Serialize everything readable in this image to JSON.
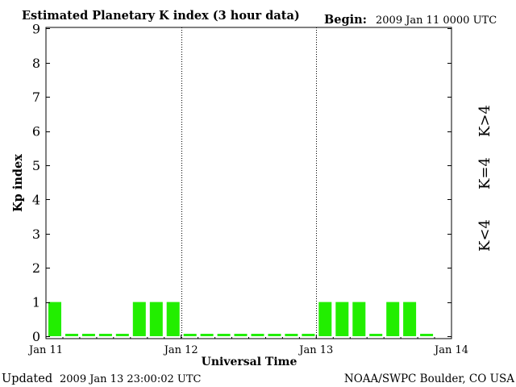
{
  "header": {
    "title": "Estimated Planetary K index (3 hour data)",
    "begin_label": "Begin:",
    "begin_value": "2009 Jan 11 0000 UTC"
  },
  "footer": {
    "updated_label": "Updated",
    "updated_value": "2009 Jan 13 23:00:02 UTC",
    "source": "NOAA/SWPC Boulder, CO USA"
  },
  "legend": {
    "above": {
      "label": "K>4",
      "color": "#ff2a00"
    },
    "equal": {
      "label": "K=4",
      "color": "#ffd400"
    },
    "below": {
      "label": "K<4",
      "color": "#22ee00"
    }
  },
  "chart_data": {
    "type": "bar",
    "title": "Estimated Planetary K index (3 hour data)",
    "xlabel": "Universal Time",
    "ylabel": "Kp index",
    "ylim": [
      0,
      9
    ],
    "yticks": [
      0,
      1,
      2,
      3,
      4,
      5,
      6,
      7,
      8,
      9
    ],
    "xlim_days": [
      0,
      3
    ],
    "xticks": [
      {
        "day": 0,
        "label": "Jan 11"
      },
      {
        "day": 1,
        "label": "Jan 12"
      },
      {
        "day": 2,
        "label": "Jan 13"
      },
      {
        "day": 3,
        "label": "Jan 14"
      }
    ],
    "day_separators": [
      1,
      2
    ],
    "interval_hours": 3,
    "values": [
      1,
      0,
      0,
      0,
      0,
      1,
      1,
      1,
      0,
      0,
      0,
      0,
      0,
      0,
      0,
      0,
      1,
      1,
      1,
      0,
      1,
      1,
      0
    ],
    "bar_color": "#22ee00",
    "grid": false
  }
}
